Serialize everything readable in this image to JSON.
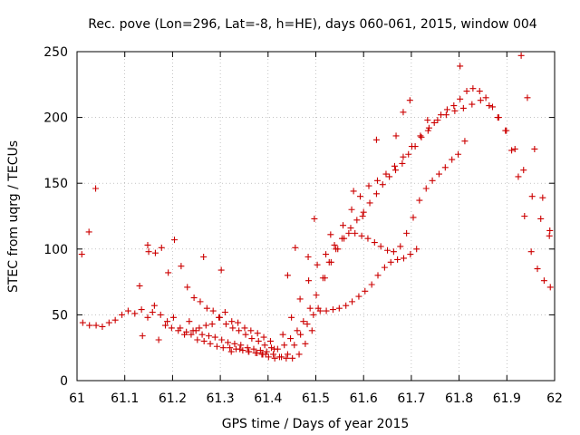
{
  "chart_data": {
    "type": "scatter",
    "title": "Rec. pove (Lon=296, Lat=-8, h=HE), days 060-061, 2015, window 004",
    "xlabel": "GPS time / Days of year 2015",
    "ylabel": "STEC from uqrg / TECUs",
    "xlim": [
      61,
      62
    ],
    "ylim": [
      0,
      250
    ],
    "x_ticks": [
      "61",
      "61.1",
      "61.2",
      "61.3",
      "61.4",
      "61.5",
      "61.6",
      "61.7",
      "61.8",
      "61.9",
      "62"
    ],
    "y_ticks": [
      "0",
      "50",
      "100",
      "150",
      "200",
      "250"
    ],
    "grid": true,
    "marker": "+",
    "color": "#cc0000",
    "series": [
      {
        "x": [
          61.012,
          61.026,
          61.04,
          61.053,
          61.067,
          61.08,
          61.094,
          61.107,
          61.121,
          61.135,
          61.148,
          61.162,
          61.175,
          61.189,
          61.202,
          61.216,
          61.229,
          61.243,
          61.256,
          61.27,
          61.283,
          61.297,
          61.31,
          61.324,
          61.337,
          61.351,
          61.364,
          61.378,
          61.391,
          61.405
        ],
        "y": [
          44,
          42,
          42,
          41,
          44,
          46,
          50,
          53,
          51,
          54,
          48,
          57,
          50,
          45,
          48,
          40,
          37,
          38,
          40,
          42,
          43,
          48,
          52,
          45,
          44,
          40,
          38,
          36,
          33,
          30
        ]
      },
      {
        "x": [
          61.137,
          61.15,
          61.164,
          61.177,
          61.191,
          61.204,
          61.218,
          61.231,
          61.245,
          61.258,
          61.272,
          61.285,
          61.299,
          61.312,
          61.326,
          61.339,
          61.353,
          61.366,
          61.38,
          61.393,
          61.407,
          61.42,
          61.434,
          61.447,
          61.461,
          61.474,
          61.488,
          61.501,
          61.515,
          61.528,
          61.542,
          61.555,
          61.569,
          61.582,
          61.596,
          61.609,
          61.623,
          61.636,
          61.65,
          61.663,
          61.677,
          61.69,
          61.704,
          61.717,
          61.731,
          61.744,
          61.758,
          61.771,
          61.785,
          61.798,
          61.812
        ],
        "y": [
          34,
          98,
          97,
          101,
          82,
          107,
          87,
          71,
          63,
          60,
          55,
          53,
          48,
          43,
          40,
          38,
          35,
          32,
          30,
          27,
          25,
          24,
          27,
          32,
          38,
          45,
          55,
          65,
          78,
          90,
          100,
          108,
          112,
          112,
          110,
          108,
          105,
          102,
          99,
          98,
          102,
          112,
          124,
          137,
          146,
          152,
          157,
          162,
          168,
          172,
          182
        ]
      },
      {
        "x": [
          61.158,
          61.171,
          61.185,
          61.198,
          61.212,
          61.225,
          61.239,
          61.252,
          61.266,
          61.279,
          61.293,
          61.306,
          61.32,
          61.333,
          61.347,
          61.36,
          61.374,
          61.387,
          61.401,
          61.414,
          61.428,
          61.441,
          61.455,
          61.468,
          61.482,
          61.495,
          61.509,
          61.522,
          61.536,
          61.549,
          61.563,
          61.576,
          61.59,
          61.603,
          61.617,
          61.63,
          61.644,
          61.657,
          61.671,
          61.684,
          61.698,
          61.711
        ],
        "y": [
          52,
          31,
          42,
          40,
          38,
          35,
          35,
          31,
          30,
          28,
          26,
          25,
          25,
          24,
          23,
          22,
          21,
          20,
          18,
          17,
          18,
          20,
          27,
          35,
          43,
          50,
          53,
          53,
          54,
          55,
          57,
          60,
          64,
          68,
          73,
          80,
          86,
          90,
          92,
          93,
          96,
          100
        ]
      },
      {
        "x": [
          61.235,
          61.249,
          61.262,
          61.276,
          61.289,
          61.303,
          61.316,
          61.33,
          61.343,
          61.357,
          61.37,
          61.384,
          61.397,
          61.411,
          61.424,
          61.438,
          61.451,
          61.465,
          61.478,
          61.492,
          61.505,
          61.519,
          61.532,
          61.546,
          61.559,
          61.573,
          61.586,
          61.6,
          61.613,
          61.627,
          61.64,
          61.654,
          61.667,
          61.681,
          61.694,
          61.708,
          61.721,
          61.735,
          61.748,
          61.762,
          61.775,
          61.789,
          61.802,
          61.816,
          61.829,
          61.843,
          61.856,
          61.87,
          61.883,
          61.897,
          61.91,
          61.924,
          61.937,
          61.951,
          61.964,
          61.978,
          61.991
        ],
        "y": [
          45,
          38,
          35,
          34,
          33,
          31,
          29,
          28,
          27,
          25,
          24,
          23,
          22,
          20,
          18,
          17,
          17,
          20,
          28,
          38,
          55,
          78,
          90,
          100,
          108,
          116,
          122,
          128,
          135,
          142,
          149,
          155,
          160,
          165,
          172,
          178,
          185,
          190,
          196,
          202,
          206,
          209,
          214,
          220,
          222,
          220,
          215,
          208,
          200,
          190,
          175,
          155,
          125,
          98,
          85,
          76,
          71
        ]
      },
      {
        "x": [
          61.323,
          61.341,
          61.359,
          61.377,
          61.395,
          61.413,
          61.431,
          61.449,
          61.467,
          61.485,
          61.503,
          61.521,
          61.539,
          61.557,
          61.575,
          61.593,
          61.611,
          61.629,
          61.647,
          61.665,
          61.683,
          61.701,
          61.719,
          61.737,
          61.755,
          61.773,
          61.791,
          61.809,
          61.827,
          61.845,
          61.863,
          61.881,
          61.899,
          61.917,
          61.935,
          61.953,
          61.971,
          61.989
        ],
        "y": [
          22,
          24,
          22,
          21,
          20,
          24,
          35,
          48,
          62,
          76,
          88,
          96,
          103,
          118,
          130,
          140,
          148,
          152,
          157,
          163,
          170,
          178,
          186,
          192,
          198,
          202,
          205,
          207,
          210,
          213,
          209,
          200,
          190,
          176,
          160,
          140,
          123,
          110
        ]
      },
      {
        "x": [
          61.01,
          61.025,
          61.039,
          61.131,
          61.148,
          61.265,
          61.302,
          61.389,
          61.441,
          61.457,
          61.484,
          61.497,
          61.531,
          61.579,
          61.598,
          61.627,
          61.668,
          61.683,
          61.697,
          61.734,
          61.802,
          61.93,
          61.943,
          61.958,
          61.975,
          61.99
        ],
        "y": [
          96,
          113,
          146,
          72,
          103,
          94,
          84,
          20,
          80,
          101,
          94,
          123,
          111,
          144,
          125,
          183,
          186,
          204,
          213,
          198,
          239,
          247,
          215,
          176,
          139,
          114
        ]
      }
    ]
  }
}
